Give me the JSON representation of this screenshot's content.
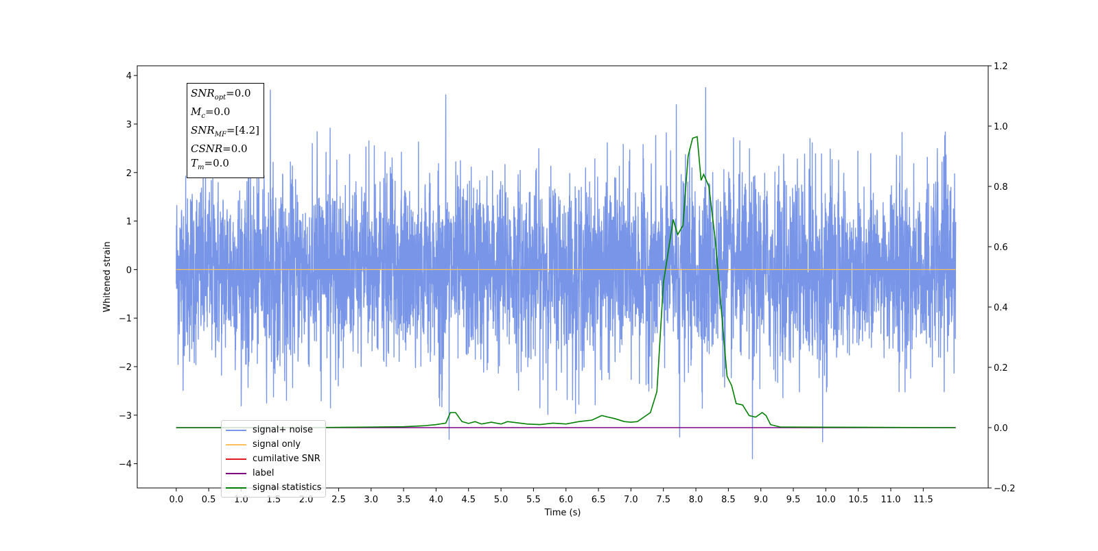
{
  "chart_data": {
    "type": "line",
    "xlabel": "Time (s)",
    "ylabel": "Whitened strain",
    "xlim": [
      -0.6,
      12.5
    ],
    "ylim": [
      -4.5,
      4.2
    ],
    "y2lim": [
      -0.2,
      1.2
    ],
    "x_ticks": [
      "0.0",
      "0.5",
      "1.0",
      "1.5",
      "2.0",
      "2.5",
      "3.0",
      "3.5",
      "4.0",
      "4.5",
      "5.0",
      "5.5",
      "6.0",
      "6.5",
      "7.0",
      "7.5",
      "8.0",
      "8.5",
      "9.0",
      "9.5",
      "10.0",
      "10.5",
      "11.0",
      "11.5"
    ],
    "y_ticks": [
      "−4",
      "−3",
      "−2",
      "−1",
      "0",
      "1",
      "2",
      "3",
      "4"
    ],
    "y2_ticks": [
      "−0.2",
      "0.0",
      "0.2",
      "0.4",
      "0.6",
      "0.8",
      "1.0",
      "1.2"
    ],
    "grid": false,
    "legend_position": "lower-left",
    "annotation": [
      {
        "var": "SNR",
        "sub": "opt",
        "value": "=0.0"
      },
      {
        "var": "M",
        "sub": "c",
        "value": "=0.0"
      },
      {
        "var": "SNR",
        "sub": "MF",
        "value": "=[4.2]"
      },
      {
        "var": "CSNR",
        "sub": "",
        "value": "=0.0"
      },
      {
        "var": "T",
        "sub": "m",
        "value": "=0.0"
      }
    ],
    "series": [
      {
        "name": "signal+ noise",
        "color": "#7895e8",
        "axis": "left",
        "t_range": [
          0.0,
          12.0
        ],
        "std": 0.95,
        "min": -3.9,
        "max": 3.8,
        "notable_peaks": [
          [
            1.45,
            3.7
          ],
          [
            4.15,
            3.6
          ],
          [
            7.7,
            3.4
          ],
          [
            8.15,
            3.75
          ],
          [
            8.87,
            -3.9
          ],
          [
            9.95,
            -3.55
          ],
          [
            4.2,
            -3.5
          ],
          [
            7.75,
            -3.45
          ]
        ]
      },
      {
        "name": "signal only",
        "color": "#ffc060",
        "axis": "left",
        "x": [
          0.0,
          12.0
        ],
        "values": [
          0.0,
          0.0
        ]
      },
      {
        "name": "cumilative SNR",
        "color": "#e41a1c",
        "axis": "right",
        "x": [],
        "values": []
      },
      {
        "name": "label",
        "color": "#800080",
        "axis": "right",
        "x": [
          0.0,
          12.0
        ],
        "values": [
          0.0,
          0.0
        ]
      },
      {
        "name": "signal statistics",
        "color": "#008000",
        "axis": "right",
        "x": [
          0.0,
          2.0,
          3.0,
          3.5,
          3.8,
          4.0,
          4.15,
          4.22,
          4.3,
          4.4,
          4.5,
          4.6,
          4.7,
          4.85,
          5.0,
          5.1,
          5.25,
          5.4,
          5.6,
          5.8,
          6.0,
          6.2,
          6.4,
          6.55,
          6.65,
          6.75,
          6.9,
          7.0,
          7.1,
          7.2,
          7.3,
          7.4,
          7.5,
          7.55,
          7.65,
          7.72,
          7.8,
          7.88,
          7.95,
          8.02,
          8.08,
          8.12,
          8.2,
          8.3,
          8.38,
          8.48,
          8.55,
          8.62,
          8.72,
          8.82,
          8.92,
          9.02,
          9.08,
          9.15,
          9.3,
          12.0
        ],
        "values": [
          0.0,
          0.0,
          0.002,
          0.003,
          0.006,
          0.01,
          0.015,
          0.05,
          0.05,
          0.02,
          0.014,
          0.02,
          0.012,
          0.018,
          0.012,
          0.02,
          0.016,
          0.012,
          0.01,
          0.015,
          0.012,
          0.02,
          0.025,
          0.04,
          0.035,
          0.03,
          0.02,
          0.018,
          0.02,
          0.035,
          0.05,
          0.12,
          0.48,
          0.55,
          0.69,
          0.64,
          0.67,
          0.9,
          0.96,
          0.965,
          0.82,
          0.84,
          0.8,
          0.62,
          0.42,
          0.17,
          0.14,
          0.08,
          0.075,
          0.04,
          0.035,
          0.05,
          0.04,
          0.01,
          0.002,
          0.0
        ]
      }
    ]
  }
}
